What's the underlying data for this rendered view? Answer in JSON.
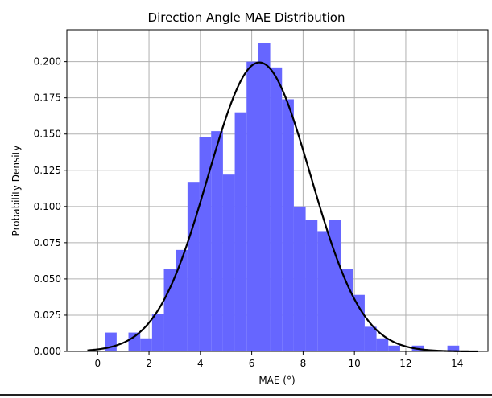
{
  "chart_data": {
    "type": "bar",
    "title": "Direction Angle MAE Distribution",
    "xlabel": "MAE (°)",
    "ylabel": "Probability Density",
    "xlim": [
      -1.2,
      15.2
    ],
    "ylim": [
      0,
      0.222
    ],
    "grid": true,
    "colors": {
      "bars": "#6666ff",
      "curve": "#000000",
      "grid": "#b0b0b0"
    },
    "xticks": [
      0,
      2,
      4,
      6,
      8,
      10,
      12,
      14
    ],
    "xtick_labels": [
      "0",
      "2",
      "4",
      "6",
      "8",
      "10",
      "12",
      "14"
    ],
    "yticks": [
      0,
      0.025,
      0.05,
      0.075,
      0.1,
      0.125,
      0.15,
      0.175,
      0.2
    ],
    "ytick_labels": [
      "0.000",
      "0.025",
      "0.050",
      "0.075",
      "0.100",
      "0.125",
      "0.150",
      "0.175",
      "0.200"
    ],
    "histogram": {
      "bin_edges": [
        0.28,
        0.74,
        1.2,
        1.66,
        2.12,
        2.58,
        3.04,
        3.5,
        3.96,
        4.42,
        4.88,
        5.34,
        5.8,
        6.26,
        6.72,
        7.18,
        7.64,
        8.1,
        8.56,
        9.02,
        9.48,
        9.94,
        10.4,
        10.86,
        11.32,
        11.78,
        12.24,
        12.7,
        13.16,
        13.62,
        14.08
      ],
      "densities": [
        0.013,
        0.0,
        0.013,
        0.009,
        0.026,
        0.057,
        0.07,
        0.117,
        0.148,
        0.152,
        0.122,
        0.165,
        0.2,
        0.213,
        0.196,
        0.174,
        0.1,
        0.091,
        0.083,
        0.091,
        0.057,
        0.039,
        0.017,
        0.009,
        0.004,
        0.0,
        0.004,
        0.0,
        0.0,
        0.004
      ]
    },
    "normal_fit": {
      "mean": 6.3,
      "std": 2.0,
      "x_range": [
        -0.4,
        14.8
      ]
    }
  }
}
